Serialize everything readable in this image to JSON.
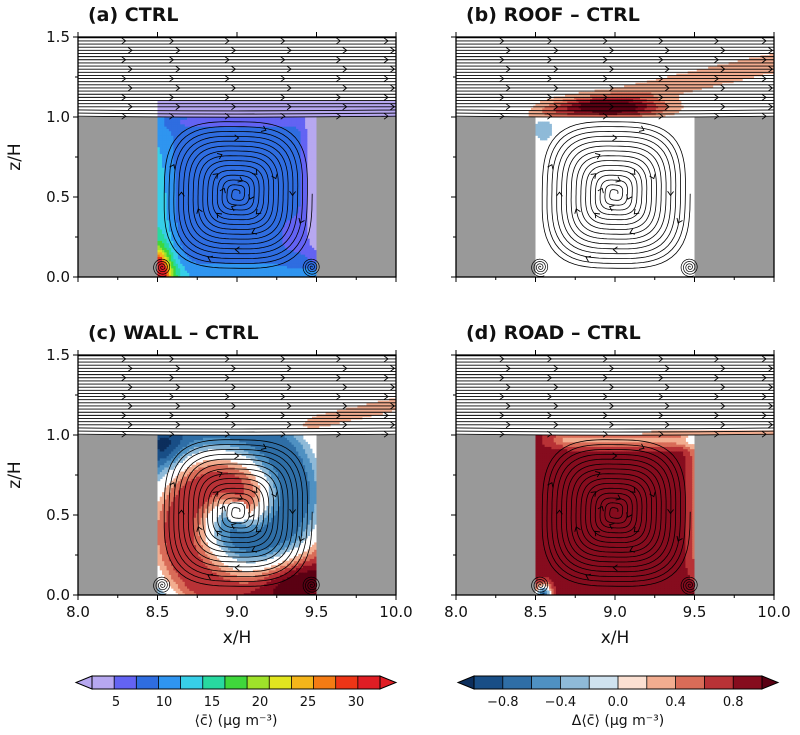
{
  "chart_data": [
    {
      "type": "heatmap",
      "title": "(a) CTRL",
      "xlabel": "",
      "ylabel": "z/H",
      "xlim": [
        8.0,
        10.0
      ],
      "ylim": [
        0.0,
        1.5
      ],
      "x_ticks": [
        "8.0",
        "8.5",
        "9.0",
        "9.5",
        "10.0"
      ],
      "y_ticks": [
        "0.0",
        "0.5",
        "1.0",
        "1.5"
      ],
      "show_xticklabels": false,
      "show_ylabels": true,
      "colorbar": "c",
      "field": "concentration",
      "canyon_x": [
        8.5,
        9.5
      ],
      "vortex_center": [
        9.0,
        0.52
      ],
      "street_plume_value": 2.5,
      "plume_above_roof": "blue (~2.5)"
    },
    {
      "type": "heatmap",
      "title": "(b) ROOF – CTRL",
      "xlabel": "",
      "ylabel": "",
      "xlim": [
        8.0,
        10.0
      ],
      "ylim": [
        0.0,
        1.5
      ],
      "x_ticks": [
        "8.0",
        "8.5",
        "9.0",
        "9.5",
        "10.0"
      ],
      "y_ticks": [
        "0.0",
        "0.5",
        "1.0",
        "1.5"
      ],
      "show_xticklabels": false,
      "show_ylabels": false,
      "colorbar": "dc",
      "field": "difference",
      "canyon_x": [
        8.5,
        9.5
      ],
      "vortex_center": [
        9.0,
        0.52
      ],
      "interior_value": -0.1,
      "roof_layer_value": 0.9,
      "plume_value": 0.35
    },
    {
      "type": "heatmap",
      "title": "(c) WALL – CTRL",
      "xlabel": "x/H",
      "ylabel": "z/H",
      "xlim": [
        8.0,
        10.0
      ],
      "ylim": [
        0.0,
        1.5
      ],
      "x_ticks": [
        "8.0",
        "8.5",
        "9.0",
        "9.5",
        "10.0"
      ],
      "y_ticks": [
        "0.0",
        "0.5",
        "1.0",
        "1.5"
      ],
      "show_xticklabels": true,
      "show_ylabels": true,
      "colorbar": "dc",
      "field": "difference",
      "canyon_x": [
        8.5,
        9.5
      ],
      "vortex_center": [
        9.0,
        0.52
      ],
      "ring_value_min": -0.8,
      "ring_value_max": 0.8,
      "plume_value": 0.3
    },
    {
      "type": "heatmap",
      "title": "(d) ROAD – CTRL",
      "xlabel": "x/H",
      "ylabel": "",
      "xlim": [
        8.0,
        10.0
      ],
      "ylim": [
        0.0,
        1.5
      ],
      "x_ticks": [
        "8.0",
        "8.5",
        "9.0",
        "9.5",
        "10.0"
      ],
      "y_ticks": [
        "0.0",
        "0.5",
        "1.0",
        "1.5"
      ],
      "show_xticklabels": true,
      "show_ylabels": false,
      "colorbar": "dc",
      "field": "difference",
      "canyon_x": [
        8.5,
        9.5
      ],
      "vortex_center": [
        9.0,
        0.52
      ],
      "interior_value": 0.9,
      "plume_value": 0.3
    }
  ],
  "colorbars": {
    "c": {
      "label": "⟨c̄⟩ (μg m⁻³)",
      "min": 2.5,
      "max": 32.5,
      "step": 2.5,
      "ticks": [
        "5",
        "10",
        "15",
        "20",
        "25",
        "30"
      ],
      "tick_values": [
        5,
        10,
        15,
        20,
        25,
        30
      ],
      "colors": [
        "#b7a8f0",
        "#6363f3",
        "#2f6de0",
        "#2f95f0",
        "#37cfe8",
        "#28d9a0",
        "#3fd73b",
        "#9fe22a",
        "#e1e51f",
        "#f4b51a",
        "#f47b14",
        "#ed3516",
        "#e01d24"
      ],
      "extend_low_color": "#b7a8f0",
      "extend_high_color": "#e01d24"
    },
    "dc": {
      "label": "Δ⟨c̄⟩ (μg m⁻³)",
      "min": -1.0,
      "max": 1.0,
      "step": 0.2,
      "ticks": [
        "−0.8",
        "−0.4",
        "0.0",
        "0.4",
        "0.8"
      ],
      "tick_values": [
        -0.8,
        -0.4,
        0.0,
        0.4,
        0.8
      ],
      "colors": [
        "#194e86",
        "#2f6ea6",
        "#4f91c2",
        "#8fbad8",
        "#cfe2ef",
        "#fbe0d2",
        "#f2ad90",
        "#d96c58",
        "#b83236",
        "#860c1e"
      ],
      "extend_low_color": "#0c2e5c",
      "extend_high_color": "#5a0013"
    }
  },
  "style": {
    "building_color": "#999999"
  }
}
